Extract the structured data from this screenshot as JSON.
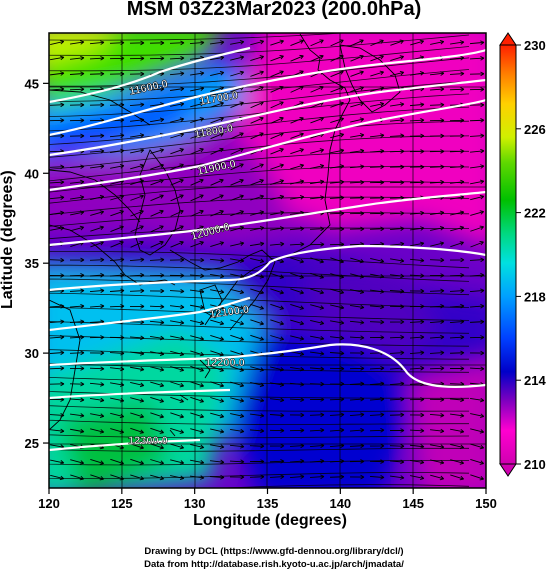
{
  "title": "MSM 03Z23Mar2023 (200.0hPa)",
  "xlabel": "Longitude (degrees)",
  "ylabel": "Latitude  (degrees)",
  "credits": {
    "line1": "Drawing by DCL (https://www.gfd-dennou.org/library/dcl/)",
    "line2": "Data from http://database.rish.kyoto-u.ac.jp/arch/jmadata/"
  },
  "chart_data": {
    "type": "heatmap",
    "xlim": [
      120,
      150
    ],
    "ylim": [
      22.5,
      47.8
    ],
    "x_ticks": [
      "120",
      "125",
      "130",
      "135",
      "140",
      "145",
      "150"
    ],
    "y_ticks": [
      "25",
      "30",
      "35",
      "40",
      "45"
    ],
    "colorbar": {
      "min": 210,
      "max": 230,
      "tick_labels": [
        "230",
        "226",
        "222",
        "218",
        "214",
        "210"
      ],
      "colors": [
        "#d000b0",
        "#ff00d0",
        "#8000c0",
        "#0000c8",
        "#0040ff",
        "#00a0ff",
        "#00e0e0",
        "#00d880",
        "#00c000",
        "#60d800",
        "#d0f000",
        "#ffd000",
        "#ff8000",
        "#ff2000"
      ]
    },
    "contours": {
      "color": "#ffffff",
      "labels": [
        "11600.0",
        "11700.0",
        "11800.0",
        "11900.0",
        "12000.0",
        "12100.0",
        "12200.0",
        "12300.0"
      ]
    },
    "grid": true
  }
}
